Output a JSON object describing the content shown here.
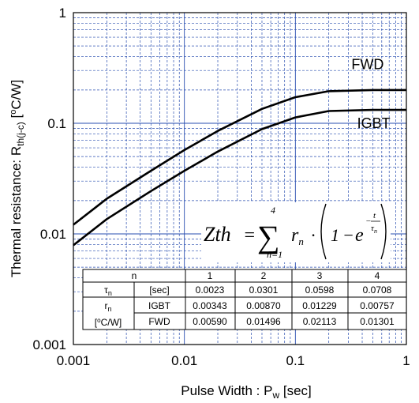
{
  "chart_data": {
    "type": "line",
    "xscale": "log",
    "yscale": "log",
    "xlim": [
      0.001,
      1
    ],
    "ylim": [
      0.001,
      1
    ],
    "xlabel_main": "Pulse Width : P",
    "xlabel_sub": "w",
    "xlabel_unit": " [sec]",
    "ylabel_main": "Thermal resistance: R",
    "ylabel_sub": "th(j-c)",
    "ylabel_unit": " [",
    "ylabel_unit_sup": "o",
    "ylabel_unit_end": "C/W]",
    "grid": true,
    "x_ticks": [
      {
        "value": 0.001,
        "label": "0.001"
      },
      {
        "value": 0.01,
        "label": "0.01"
      },
      {
        "value": 0.1,
        "label": "0.1"
      },
      {
        "value": 1,
        "label": "1"
      }
    ],
    "y_ticks": [
      {
        "value": 0.001,
        "label": "0.001"
      },
      {
        "value": 0.01,
        "label": "0.01"
      },
      {
        "value": 0.1,
        "label": "0.1"
      },
      {
        "value": 1,
        "label": "1"
      }
    ],
    "series": [
      {
        "name": "FWD",
        "label_at": [
          0.32,
          0.34
        ],
        "x": [
          0.001,
          0.002,
          0.005,
          0.01,
          0.02,
          0.05,
          0.1,
          0.2,
          0.5,
          1
        ],
        "y": [
          0.0121,
          0.0208,
          0.0372,
          0.0573,
          0.0853,
          0.135,
          0.172,
          0.195,
          0.2,
          0.2
        ]
      },
      {
        "name": "IGBT",
        "label_at": [
          0.36,
          0.1
        ],
        "x": [
          0.001,
          0.002,
          0.005,
          0.01,
          0.02,
          0.05,
          0.1,
          0.2,
          0.5,
          1
        ],
        "y": [
          0.0079,
          0.0136,
          0.0244,
          0.0372,
          0.0555,
          0.0885,
          0.113,
          0.129,
          0.132,
          0.132
        ]
      }
    ]
  },
  "formula": {
    "lhs": "Zth",
    "eq": "=",
    "sigma": "∑",
    "upper": "4",
    "lower": "n=1",
    "r": "r",
    "r_sub": "n",
    "dot": "·",
    "one": "1",
    "minus": "−",
    "e": "e",
    "exp_sign": "−",
    "exp_num": "t",
    "exp_den": "τ",
    "exp_den_sub": "n"
  },
  "table": {
    "header": {
      "n_label": "n",
      "cols": [
        "1",
        "2",
        "3",
        "4"
      ]
    },
    "tau_row": {
      "symbol": "τ",
      "symbol_sub": "n",
      "unit": "[sec]",
      "values": [
        "0.0023",
        "0.0301",
        "0.0598",
        "0.0708"
      ]
    },
    "r_group": {
      "symbol": "r",
      "symbol_sub": "n",
      "unit_pre": "[",
      "unit_sup": "o",
      "unit_post": "C/W]"
    },
    "r_rows": [
      {
        "label": "IGBT",
        "values": [
          "0.00343",
          "0.00870",
          "0.01229",
          "0.00757"
        ]
      },
      {
        "label": "FWD",
        "values": [
          "0.00590",
          "0.01496",
          "0.02113",
          "0.01301"
        ]
      }
    ]
  }
}
